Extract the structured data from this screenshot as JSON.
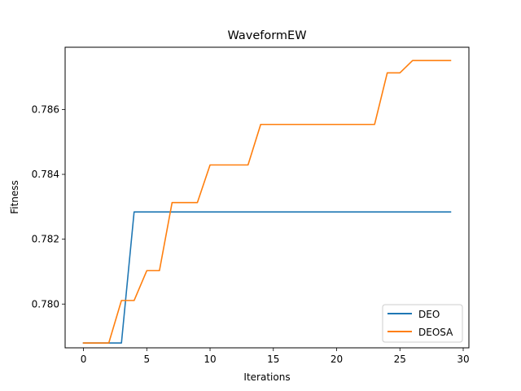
{
  "chart_data": {
    "type": "line",
    "title": "WaveformEW",
    "xlabel": "Iterations",
    "ylabel": "Fitness",
    "xlim": [
      -1.45,
      30.45
    ],
    "ylim": [
      0.77865,
      0.78792
    ],
    "xticks": [
      0,
      5,
      10,
      15,
      20,
      25,
      30
    ],
    "yticks": [
      0.78,
      0.782,
      0.784,
      0.786
    ],
    "ytick_labels": [
      "0.780",
      "0.782",
      "0.784",
      "0.786"
    ],
    "grid": false,
    "legend_position": "lower right",
    "x": [
      0,
      1,
      2,
      3,
      4,
      5,
      6,
      7,
      8,
      9,
      10,
      11,
      12,
      13,
      14,
      15,
      16,
      17,
      18,
      19,
      20,
      21,
      22,
      23,
      24,
      25,
      26,
      27,
      28,
      29
    ],
    "series": [
      {
        "name": "DEO",
        "color": "#1f77b4",
        "values": [
          0.7788,
          0.7788,
          0.7788,
          0.7788,
          0.78284,
          0.78284,
          0.78284,
          0.78284,
          0.78284,
          0.78284,
          0.78284,
          0.78284,
          0.78284,
          0.78284,
          0.78284,
          0.78284,
          0.78284,
          0.78284,
          0.78284,
          0.78284,
          0.78284,
          0.78284,
          0.78284,
          0.78284,
          0.78284,
          0.78284,
          0.78284,
          0.78284,
          0.78284,
          0.78284
        ]
      },
      {
        "name": "DEOSA",
        "color": "#ff7f0e",
        "values": [
          0.7788,
          0.7788,
          0.7788,
          0.78011,
          0.78011,
          0.78103,
          0.78103,
          0.78313,
          0.78313,
          0.78313,
          0.78429,
          0.78429,
          0.78429,
          0.78429,
          0.78554,
          0.78554,
          0.78554,
          0.78554,
          0.78554,
          0.78554,
          0.78554,
          0.78554,
          0.78554,
          0.78554,
          0.78713,
          0.78713,
          0.78751,
          0.78751,
          0.78751,
          0.78751
        ]
      }
    ]
  }
}
